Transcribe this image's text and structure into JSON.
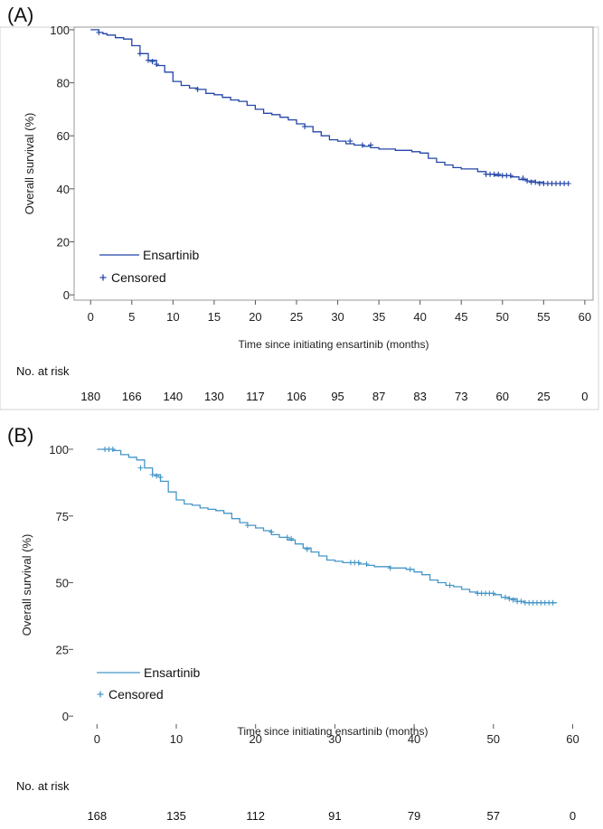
{
  "chart_data": [
    {
      "panel_label": "(A)",
      "type": "line",
      "color": "#2345a8",
      "ylabel": "Overall survival (%)",
      "xlabel": "Time since initiating ensartinib (months)",
      "xlim": [
        -2,
        61
      ],
      "ylim": [
        -2,
        101
      ],
      "xticks": [
        0,
        5,
        10,
        15,
        20,
        25,
        30,
        35,
        40,
        45,
        50,
        55,
        60
      ],
      "yticks": [
        0,
        20,
        40,
        60,
        80,
        100
      ],
      "legend": {
        "placement": "bottom-left",
        "line_label": "Ensartinib",
        "censor_label": "Censored"
      },
      "series": [
        {
          "name": "Ensartinib",
          "x": [
            0,
            1,
            1.5,
            2,
            3,
            4,
            5,
            6,
            7,
            8,
            9,
            10,
            11,
            12,
            13,
            14,
            15,
            16,
            17,
            18,
            19,
            20,
            21,
            22,
            23,
            24,
            25,
            26,
            27,
            28,
            29,
            30,
            31,
            32,
            33,
            34,
            35,
            36,
            37,
            38,
            39,
            40,
            41,
            42,
            43,
            44,
            45,
            46,
            47,
            48,
            49,
            50,
            51,
            52,
            53,
            54,
            55,
            56,
            57,
            58
          ],
          "y": [
            100,
            99,
            98.5,
            98,
            97,
            96.5,
            94,
            91,
            88.5,
            86.5,
            84,
            80.5,
            79,
            78,
            77.5,
            76,
            75.5,
            74.5,
            73.5,
            73,
            71.5,
            70,
            68.5,
            68,
            67,
            66,
            64.5,
            63.5,
            61.5,
            60,
            58.5,
            58,
            57,
            56.5,
            56,
            55.5,
            55,
            55,
            54.5,
            54.5,
            54,
            53.5,
            51.5,
            50,
            49,
            48,
            47.5,
            47.5,
            46.5,
            45.5,
            45,
            45,
            44.5,
            43.5,
            43,
            42.5,
            42,
            42,
            42,
            42
          ]
        }
      ],
      "censored": {
        "x": [
          1,
          6,
          7,
          7.5,
          8,
          13,
          26,
          31.5,
          33,
          34,
          48,
          48.5,
          49,
          49.5,
          50,
          50.5,
          51,
          52.5,
          53,
          53.5,
          54,
          54.5,
          55,
          55.5,
          56,
          56.5,
          57,
          57.5,
          58
        ],
        "y": [
          99,
          91,
          88.5,
          88,
          87,
          77.5,
          63.5,
          58,
          56.5,
          56.5,
          45.5,
          45.5,
          45.5,
          45.5,
          45,
          45,
          45,
          44,
          43,
          42.5,
          42.5,
          42,
          42,
          42,
          42,
          42,
          42,
          42,
          42
        ]
      },
      "risk_table": {
        "label": "No. at risk",
        "times": [
          0,
          5,
          10,
          15,
          20,
          25,
          30,
          35,
          40,
          45,
          50,
          55,
          60
        ],
        "values": [
          "180",
          "166",
          "140",
          "130",
          "117",
          "106",
          "95",
          "87",
          "83",
          "73",
          "60",
          "25",
          "0"
        ]
      }
    },
    {
      "panel_label": "(B)",
      "type": "line",
      "color": "#4596c8",
      "ylabel": "Overall survival (%)",
      "xlabel": "Time since initiating ensartinib (months)",
      "xlim": [
        -3,
        62
      ],
      "ylim": [
        -3,
        101
      ],
      "xticks": [
        0,
        10,
        20,
        30,
        40,
        50,
        60
      ],
      "yticks": [
        0,
        25,
        50,
        75,
        100
      ],
      "legend": {
        "placement": "bottom-left",
        "line_label": "Ensartinib",
        "censor_label": "Censored"
      },
      "series": [
        {
          "name": "Ensartinib",
          "x": [
            0,
            2,
            3,
            4,
            5,
            6,
            7,
            8,
            9,
            10,
            11,
            12,
            13,
            14,
            15,
            16,
            17,
            18,
            19,
            20,
            21,
            22,
            23,
            24,
            25,
            26,
            27,
            28,
            29,
            30,
            31,
            32,
            33,
            34,
            35,
            36,
            37,
            38,
            39,
            40,
            41,
            42,
            43,
            44,
            45,
            46,
            47,
            48,
            49,
            50,
            51,
            52,
            53,
            54,
            55,
            56,
            57,
            58
          ],
          "y": [
            100,
            99.5,
            98,
            97,
            96,
            93,
            90.5,
            88,
            84,
            81,
            79.5,
            79,
            78,
            77.5,
            77,
            76,
            74,
            72.5,
            71.5,
            70.5,
            69.5,
            68,
            67,
            66,
            64.5,
            63,
            61.5,
            60,
            58.5,
            58,
            57.5,
            57.5,
            57,
            56.5,
            56,
            56,
            55.5,
            55.5,
            55,
            54,
            53,
            51,
            50,
            49,
            48.5,
            47.5,
            46.5,
            46,
            46,
            45.5,
            44.5,
            44,
            43,
            42.5,
            42.5,
            42.5,
            42.5,
            42.5
          ]
        }
      ],
      "censored": {
        "x": [
          1,
          1.5,
          2,
          5.5,
          7,
          7.5,
          8,
          19,
          22,
          24,
          24.5,
          26.5,
          32,
          32.5,
          33,
          34,
          37,
          39.5,
          44.5,
          48,
          48.5,
          49,
          49.5,
          50,
          51.5,
          52,
          52.5,
          53,
          53.5,
          54,
          54.5,
          55,
          55.5,
          56,
          56.5,
          57,
          57.5
        ],
        "y": [
          100,
          100,
          100,
          93,
          90.5,
          90,
          89.5,
          71.5,
          69,
          67,
          66.5,
          62.5,
          57.5,
          57.5,
          57.5,
          57,
          55.5,
          55,
          49,
          46,
          46,
          46,
          46,
          46,
          44.5,
          44,
          43.5,
          43,
          43,
          42.5,
          42.5,
          42.5,
          42.5,
          42.5,
          42.5,
          42.5,
          42.5
        ]
      },
      "risk_table": {
        "label": "No. at risk",
        "times": [
          0,
          10,
          20,
          30,
          40,
          50,
          60
        ],
        "values": [
          "168",
          "135",
          "112",
          "91",
          "79",
          "57",
          "0"
        ]
      }
    }
  ]
}
